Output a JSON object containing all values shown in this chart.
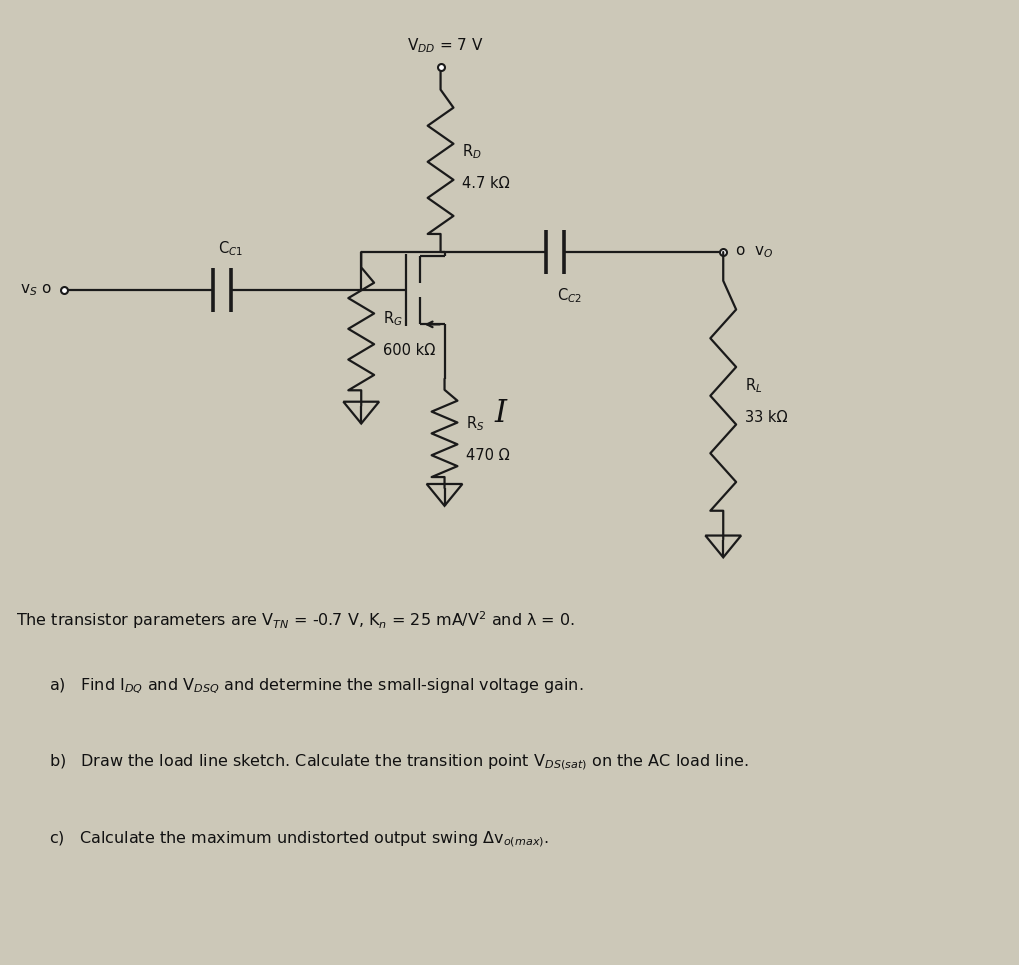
{
  "background_color": "#ccc8b8",
  "fig_width": 10.19,
  "fig_height": 9.65,
  "vdd_label": "V$_{DD}$ = 7 V",
  "rd_label1": "R$_D$",
  "rd_label2": "4.7 kΩ",
  "rg_label1": "R$_G$",
  "rg_label2": "600 kΩ",
  "rs_label1": "R$_S$",
  "rs_label2": "470 Ω",
  "rl_label1": "R$_L$",
  "rl_label2": "33 kΩ",
  "cc1_label": "C$_{C1}$",
  "cc2_label": "C$_{C2}$",
  "vs_label": "v$_S$ o",
  "vo_label": "o  v$_O$",
  "roman_I": "I",
  "params_line": "The transistor parameters are V$_{TN}$ = -0.7 V, K$_n$ = 25 mA/V$^2$ and λ = 0.",
  "part_a": "a)   Find I$_{DQ}$ and V$_{DSQ}$ and determine the small-signal voltage gain.",
  "part_b": "b)   Draw the load line sketch. Calculate the transition point V$_{DS(sat)}$ on the AC load line.",
  "part_c": "c)   Calculate the maximum undistorted output swing Δv$_{o(max)}$.",
  "line_color": "#1a1a1a",
  "text_color": "#111111"
}
